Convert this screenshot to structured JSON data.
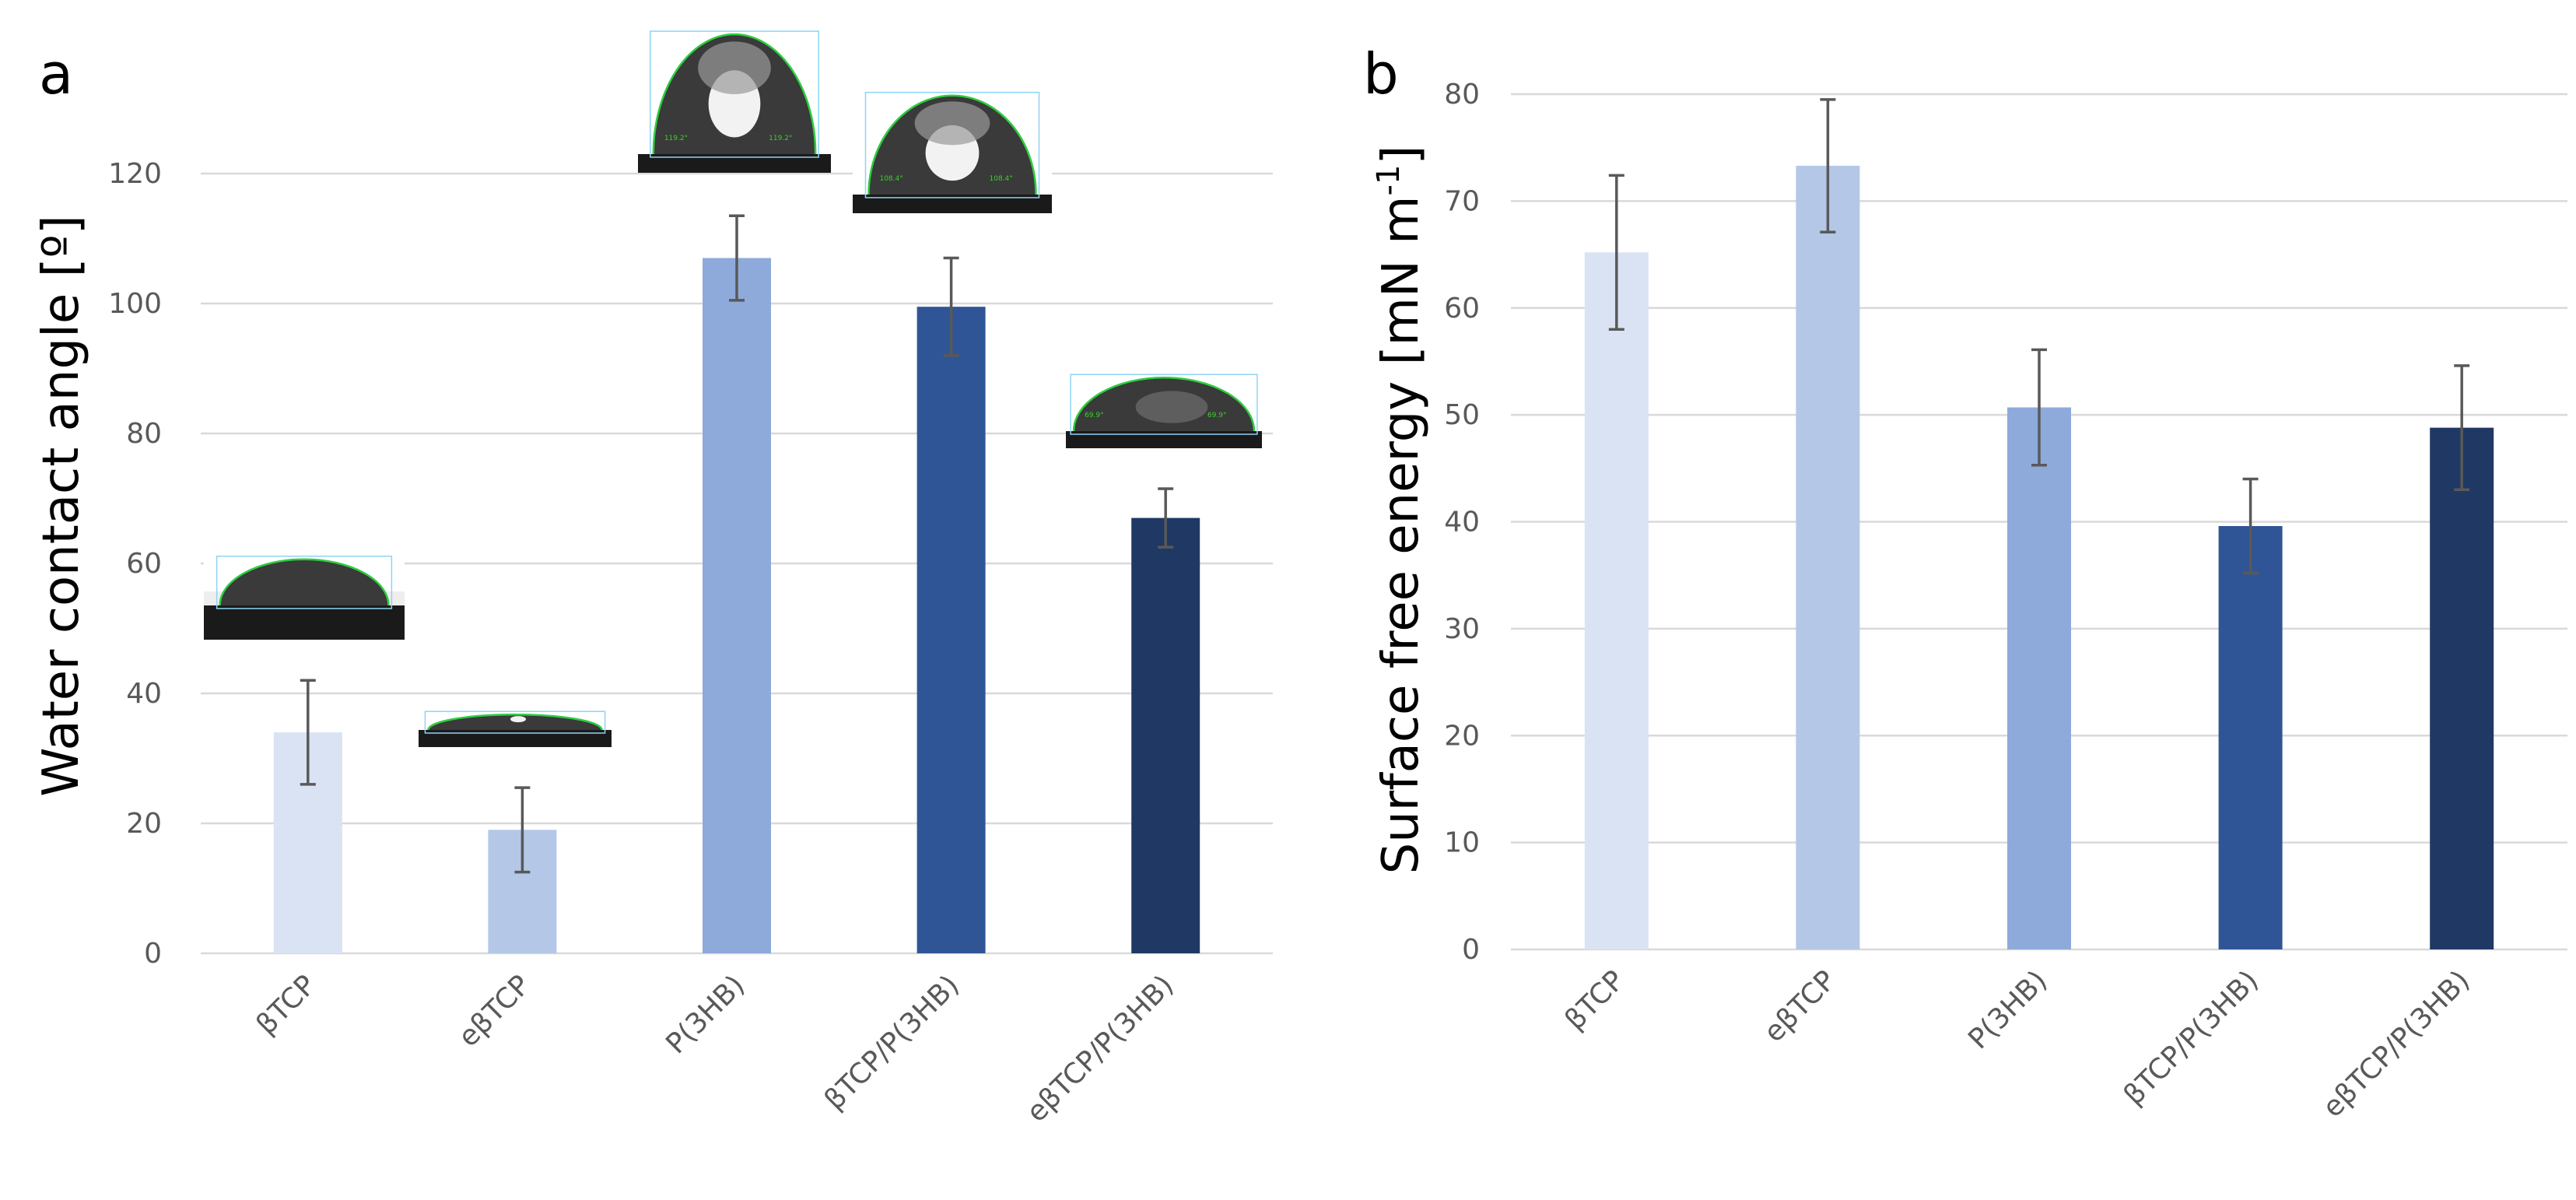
{
  "colors": [
    "#dae3f3",
    "#b4c7e7",
    "#8eaadb",
    "#2f5597",
    "#203864"
  ],
  "chart_data": [
    {
      "panel": "a",
      "type": "bar",
      "ylabel": "Water contact angle [º]",
      "categories": [
        "βTCP",
        "eβTCP",
        "P(3HB)",
        "βTCP/P(3HB)",
        "eβTCP/P(3HB)"
      ],
      "values": [
        34,
        19,
        107,
        99.5,
        67
      ],
      "errors": [
        8,
        6.5,
        6.5,
        7.5,
        4.5
      ],
      "ylim": [
        0,
        140
      ],
      "yticks": [
        0,
        20,
        40,
        60,
        80,
        100,
        120
      ],
      "grid": true,
      "inset_images": [
        "water-droplet-photo"
      ],
      "droplet_angle_labels": [
        [
          "",
          ""
        ],
        [
          "",
          ""
        ],
        [
          "119.2°",
          "119.2°"
        ],
        [
          "108.4°",
          "108.4°"
        ],
        [
          "69.9°",
          "69.9°"
        ]
      ]
    },
    {
      "panel": "b",
      "type": "bar",
      "ylabel": "Surface free energy [mN m⁻¹]",
      "categories": [
        "βTCP",
        "eβTCP",
        "P(3HB)",
        "βTCP/P(3HB)",
        "eβTCP/P(3HB)"
      ],
      "values": [
        65.2,
        73.3,
        50.7,
        39.6,
        48.8
      ],
      "errors": [
        7.2,
        6.2,
        5.4,
        4.4,
        5.8
      ],
      "ylim": [
        0,
        80
      ],
      "yticks": [
        0,
        10,
        20,
        30,
        40,
        50,
        60,
        70,
        80
      ],
      "grid": true
    }
  ]
}
